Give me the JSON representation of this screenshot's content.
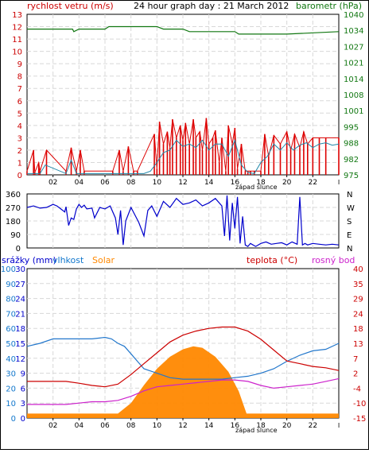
{
  "chart_data": [
    {
      "type": "line",
      "title": "24 hour graph day : 21 March 2012",
      "left_axis_label": "rychlost vetru (m/s)",
      "right_axis_label": "barometr (hPa)",
      "left_ticks": [
        "0",
        "1",
        "2",
        "3",
        "4",
        "5",
        "6",
        "7",
        "8",
        "9",
        "10",
        "11",
        "12",
        "13"
      ],
      "left_ylim": [
        0,
        13
      ],
      "right_ticks": [
        "975",
        "982",
        "988",
        "995",
        "1001",
        "1008",
        "1014",
        "1021",
        "1027",
        "1034",
        "1040"
      ],
      "right_ylim": [
        975,
        1040
      ],
      "x_ticks": [
        "02",
        "04",
        "06",
        "08",
        "10",
        "12",
        "14",
        "16",
        "18",
        "20",
        "22"
      ],
      "x_marker": "západ slunce",
      "grid": true,
      "colors": {
        "wind_gust": "#dd0000",
        "wind_avg": "#2288aa",
        "pressure": "#117711",
        "left_axis": "#cc0000",
        "right_axis": "#117711"
      },
      "series": [
        {
          "key": "pressure",
          "x": [
            0,
            3.5,
            3.6,
            4,
            6,
            6.3,
            10,
            10.5,
            12,
            12.5,
            14,
            16,
            16.3,
            20,
            24
          ],
          "y": [
            1034,
            1034,
            1033,
            1034,
            1034,
            1035,
            1035,
            1034,
            1034,
            1033,
            1033,
            1033,
            1032,
            1032,
            1033
          ]
        },
        {
          "key": "wind_gust",
          "x": [
            0,
            0.5,
            0.6,
            0.9,
            1,
            1.5,
            3,
            3.4,
            3.8,
            4.1,
            4.4,
            6.6,
            7.1,
            7.4,
            7.8,
            8.2,
            8.5,
            9.8,
            10,
            10.2,
            10.5,
            10.8,
            11,
            11.2,
            11.5,
            11.8,
            12,
            12.2,
            12.5,
            12.8,
            13,
            13.3,
            13.5,
            13.8,
            14,
            14.3,
            14.5,
            14.8,
            15,
            15.3,
            15.5,
            15.8,
            16,
            16.2,
            16.5,
            16.8,
            17,
            17.2,
            17.5,
            18,
            18.3,
            18.6,
            19,
            19.5,
            20,
            20.3,
            20.6,
            21,
            21.3,
            21.6,
            22,
            22.5,
            23,
            24
          ],
          "y": [
            0.3,
            2,
            0.2,
            1,
            0.3,
            2,
            0.3,
            2.2,
            0.3,
            2,
            0.3,
            0.3,
            2,
            0.3,
            2.3,
            0.3,
            0.3,
            3.3,
            0.5,
            4.3,
            2.5,
            3.5,
            2.2,
            4.5,
            3,
            4,
            2.8,
            4.2,
            2.5,
            4.5,
            3,
            3.5,
            2,
            4.6,
            2.5,
            3,
            3.6,
            1,
            3,
            0.3,
            4,
            2.5,
            3.8,
            0.5,
            2.5,
            0.3,
            0.3,
            0.3,
            0.3,
            0.3,
            3.3,
            1.5,
            3.2,
            2.5,
            3.5,
            2,
            3.3,
            2.2,
            3.5,
            2.5,
            3,
            3,
            3,
            3
          ]
        },
        {
          "key": "wind_avg",
          "x": [
            0,
            1,
            1.4,
            3,
            3.4,
            3.8,
            6,
            8,
            9,
            9.5,
            10,
            10.5,
            11,
            11.5,
            12,
            12.5,
            13,
            13.5,
            14,
            14.5,
            15,
            15.5,
            16,
            16.5,
            17,
            17.5,
            18,
            18.5,
            19,
            19.5,
            20,
            20.5,
            21,
            21.5,
            22,
            22.5,
            23,
            23.5,
            24
          ],
          "y": [
            0.1,
            0.1,
            0.8,
            0.1,
            1.2,
            0.1,
            0.1,
            0.1,
            0.1,
            0.3,
            1,
            1.8,
            2,
            2.8,
            2.3,
            2.5,
            2.2,
            2.8,
            2,
            2.5,
            2.5,
            1.5,
            2.8,
            0.8,
            0.2,
            0.1,
            1,
            1.5,
            2.5,
            2,
            2.6,
            2,
            2.4,
            2.6,
            2.2,
            2.5,
            2.6,
            2.4,
            2.5
          ]
        }
      ]
    },
    {
      "type": "line",
      "left_ticks": [
        "0",
        "90",
        "180",
        "270",
        "360"
      ],
      "left_ylim": [
        0,
        360
      ],
      "right_ticks": [
        "N",
        "E",
        "S",
        "W",
        "N"
      ],
      "grid": true,
      "colors": {
        "direction": "#0000cc"
      },
      "series": [
        {
          "key": "direction",
          "x": [
            0,
            0.5,
            1,
            1.5,
            2,
            2.3,
            2.6,
            2.9,
            3,
            3.2,
            3.4,
            3.6,
            3.8,
            4,
            4.2,
            4.4,
            4.6,
            5,
            5.2,
            5.6,
            6,
            6.4,
            6.8,
            7,
            7.2,
            7.4,
            7.6,
            8,
            8.3,
            8.6,
            9,
            9.3,
            9.6,
            10,
            10.5,
            11,
            11.5,
            12,
            12.5,
            13,
            13.5,
            14,
            14.5,
            15,
            15.2,
            15.4,
            15.6,
            15.8,
            16,
            16.2,
            16.4,
            16.6,
            16.8,
            17,
            17.2,
            17.6,
            18,
            18.4,
            18.8,
            19.2,
            19.6,
            20,
            20.4,
            20.8,
            21,
            21.2,
            21.4,
            21.6,
            22,
            22.5,
            23,
            23.5,
            24
          ],
          "y": [
            270,
            280,
            265,
            270,
            290,
            280,
            260,
            240,
            275,
            150,
            200,
            190,
            260,
            290,
            270,
            285,
            260,
            265,
            200,
            270,
            260,
            280,
            200,
            90,
            250,
            20,
            180,
            270,
            220,
            170,
            80,
            250,
            280,
            210,
            310,
            270,
            330,
            290,
            300,
            320,
            280,
            300,
            330,
            280,
            80,
            350,
            50,
            300,
            130,
            340,
            30,
            210,
            20,
            10,
            30,
            10,
            30,
            40,
            25,
            30,
            35,
            20,
            40,
            25,
            340,
            20,
            30,
            20,
            30,
            25,
            20,
            25,
            20
          ]
        }
      ]
    },
    {
      "type": "line",
      "left_axis_label_1": "srážky (mm)",
      "left_axis_label_2": "vlhkost",
      "left_axis_label_3": "Solar",
      "right_axis_label_1": "teplota (°C)",
      "right_axis_label_2": "rosný bod",
      "rain_ticks": [
        "0",
        "3",
        "6",
        "9",
        "12",
        "15",
        "18",
        "21",
        "24",
        "27",
        "30"
      ],
      "humidity_ticks": [
        "0",
        "10",
        "20",
        "30",
        "40",
        "50",
        "60",
        "70",
        "80",
        "90",
        "100"
      ],
      "temperature_ticks": [
        "-15",
        "-10",
        "-4",
        "2",
        "7",
        "13",
        "18",
        "24",
        "29",
        "35",
        "40"
      ],
      "temperature_ylim": [
        -15,
        40
      ],
      "humidity_ylim": [
        0,
        100
      ],
      "x_ticks": [
        "02",
        "04",
        "06",
        "08",
        "10",
        "12",
        "14",
        "16",
        "18",
        "20",
        "22"
      ],
      "x_marker": "západ slunce",
      "grid": true,
      "colors": {
        "temperature": "#cc0000",
        "humidity": "#2277cc",
        "dewpoint": "#cc22cc",
        "solar": "#ff8800",
        "rain_axis": "#0000cc",
        "humidity_axis": "#1177cc",
        "solar_label": "#ff8800"
      },
      "series": [
        {
          "key": "solar",
          "x": [
            0,
            6.5,
            7,
            8,
            9,
            10,
            11,
            12,
            12.8,
            13.5,
            14.5,
            15.5,
            16.3,
            16.9,
            17.1,
            24
          ],
          "y": [
            3,
            3,
            3,
            10,
            22,
            33,
            41,
            46,
            48,
            47,
            41,
            31,
            18,
            3,
            3,
            3
          ]
        },
        {
          "key": "humidity",
          "x": [
            0,
            1,
            2,
            3,
            4,
            5,
            6,
            6.5,
            7,
            7.5,
            8,
            8.5,
            9,
            10,
            11,
            12,
            13,
            14,
            15,
            16,
            17,
            18,
            19,
            20,
            21,
            22,
            23,
            24
          ],
          "y": [
            48,
            50,
            53,
            53,
            53,
            53,
            54,
            53,
            50,
            48,
            43,
            38,
            33,
            30,
            27,
            26,
            26,
            26,
            26,
            27,
            28,
            30,
            33,
            38,
            42,
            45,
            46,
            50
          ]
        },
        {
          "key": "temperature",
          "x": [
            0,
            1,
            2,
            3,
            4,
            5,
            6,
            7,
            8,
            9,
            10,
            11,
            12,
            13,
            14,
            15,
            16,
            17,
            18,
            19,
            20,
            21,
            22,
            23,
            24
          ],
          "y": [
            -1.5,
            -1.5,
            -1.5,
            -1.5,
            -2.2,
            -3,
            -3.5,
            -2.5,
            1,
            5,
            9,
            13,
            15.5,
            17,
            18,
            18.5,
            18.5,
            17,
            14,
            10,
            6,
            5,
            4,
            3.5,
            2.5
          ]
        },
        {
          "key": "dewpoint",
          "x": [
            0,
            1,
            2,
            3,
            4,
            5,
            6,
            7,
            8,
            9,
            10,
            11,
            12,
            13,
            14,
            15,
            16,
            17,
            18,
            19,
            20,
            21,
            22,
            23,
            24
          ],
          "y": [
            -10,
            -10,
            -10,
            -10,
            -9.5,
            -9,
            -9,
            -8.5,
            -7,
            -5,
            -3.5,
            -3,
            -2.5,
            -2,
            -1.5,
            -1,
            -1,
            -1.5,
            -3,
            -4,
            -3.5,
            -3,
            -2.5,
            -1.5,
            -0.5
          ]
        }
      ]
    }
  ]
}
